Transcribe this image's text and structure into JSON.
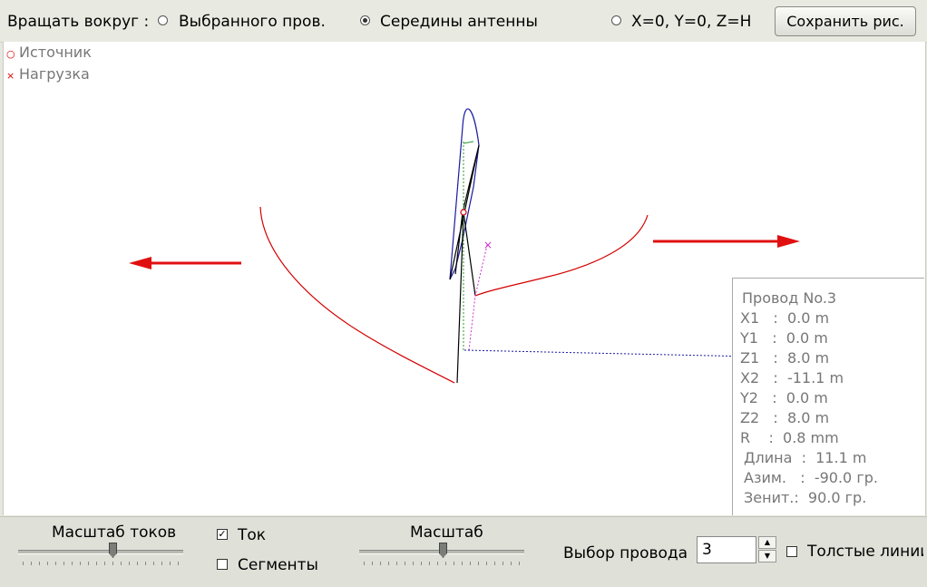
{
  "toolbar": {
    "rotate_label": "Вращать вокруг :",
    "options": [
      {
        "label": "Выбранного пров.",
        "checked": false
      },
      {
        "label": "Середины антенны",
        "checked": true
      },
      {
        "label": "X=0, Y=0, Z=H",
        "checked": false
      }
    ],
    "save_button": "Сохранить рис."
  },
  "legend": {
    "source": "Источник",
    "load": "Нагрузка"
  },
  "info": {
    "title": "Провод No.3",
    "x1": "X1   :  0.0 m",
    "y1": "Y1   :  0.0 m",
    "z1": "Z1   :  8.0 m",
    "x2": "X2   :  -11.1 m",
    "y2": "Y2   :  0.0 m",
    "z2": "Z2   :  8.0 m",
    "r": "R    :  0.8 mm",
    "length": "Длина  :  11.1 m",
    "azimuth": "Азим.   :  -90.0 гр.",
    "zenith": "Зенит.:  90.0 гр."
  },
  "bottom": {
    "current_scale_label": "Масштаб токов",
    "current_label": "Ток",
    "current_checked": true,
    "segments_label": "Сегменты",
    "segments_checked": false,
    "scale_label": "Масштаб",
    "wire_select_label": "Выбор провода",
    "wire_select_value": "3",
    "thick_lines_label": "Толстые линии",
    "thick_lines_checked": false
  },
  "colors": {
    "pattern": "#d40000",
    "arrow": "#e01010",
    "wire": "#000000",
    "current": "#1a1aa0",
    "load": "#cc33cc"
  }
}
